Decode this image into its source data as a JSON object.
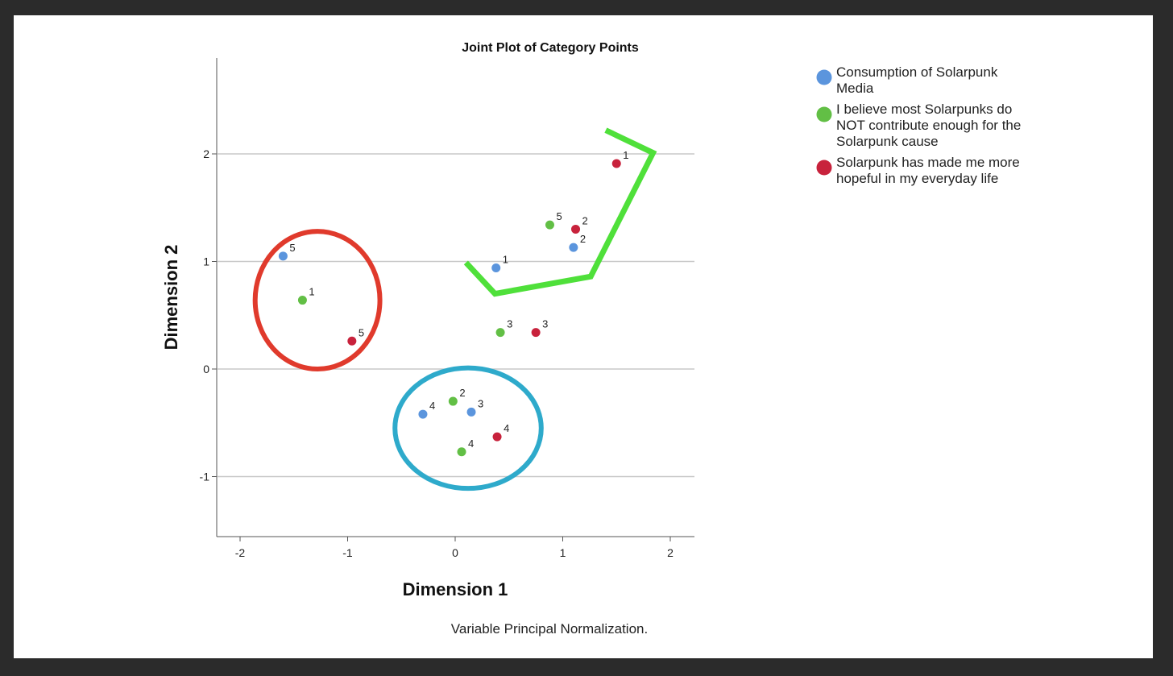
{
  "chart_data": {
    "type": "scatter",
    "title": "Joint Plot of Category Points",
    "xlabel": "Dimension 1",
    "ylabel": "Dimension 2",
    "note": "Variable Principal Normalization.",
    "xlim": [
      -2.2,
      2.2
    ],
    "ylim": [
      -1.55,
      2.9
    ],
    "xticks": [
      -2,
      -1,
      0,
      1,
      2
    ],
    "yticks": [
      -1,
      0,
      1,
      2
    ],
    "grid": "horizontal",
    "legend_position": "right",
    "series": [
      {
        "name": "Consumption of Solarpunk Media",
        "color": "#5b95dd",
        "points": [
          {
            "label": "1",
            "x": 0.38,
            "y": 0.94
          },
          {
            "label": "2",
            "x": 1.1,
            "y": 1.13
          },
          {
            "label": "3",
            "x": 0.15,
            "y": -0.4
          },
          {
            "label": "4",
            "x": -0.3,
            "y": -0.42
          },
          {
            "label": "5",
            "x": -1.6,
            "y": 1.05
          }
        ]
      },
      {
        "name": "I believe most Solarpunks do NOT contribute enough for the Solarpunk cause",
        "color": "#62bf45",
        "points": [
          {
            "label": "1",
            "x": -1.42,
            "y": 0.64
          },
          {
            "label": "2",
            "x": -0.02,
            "y": -0.3
          },
          {
            "label": "3",
            "x": 0.42,
            "y": 0.34
          },
          {
            "label": "4",
            "x": 0.06,
            "y": -0.77
          },
          {
            "label": "5",
            "x": 0.88,
            "y": 1.34
          }
        ]
      },
      {
        "name": "Solarpunk has made me more hopeful in my everyday life",
        "color": "#c8223c",
        "points": [
          {
            "label": "1",
            "x": 1.5,
            "y": 1.91
          },
          {
            "label": "2",
            "x": 1.12,
            "y": 1.3
          },
          {
            "label": "3",
            "x": 0.75,
            "y": 0.34
          },
          {
            "label": "4",
            "x": 0.39,
            "y": -0.63
          },
          {
            "label": "5",
            "x": -0.96,
            "y": 0.26
          }
        ]
      }
    ],
    "annotations": [
      {
        "shape": "ellipse",
        "color": "#e03a2c",
        "cx": -1.28,
        "cy": 0.64,
        "rx": 0.58,
        "ry": 0.64
      },
      {
        "shape": "ellipse",
        "color": "#2eaacb",
        "cx": 0.12,
        "cy": -0.55,
        "rx": 0.68,
        "ry": 0.56
      },
      {
        "shape": "polygon",
        "color": "#4fe03a",
        "points": [
          [
            1.4,
            2.22
          ],
          [
            1.84,
            2.01
          ],
          [
            1.26,
            0.86
          ],
          [
            0.37,
            0.7
          ],
          [
            0.1,
            0.99
          ]
        ]
      }
    ]
  }
}
